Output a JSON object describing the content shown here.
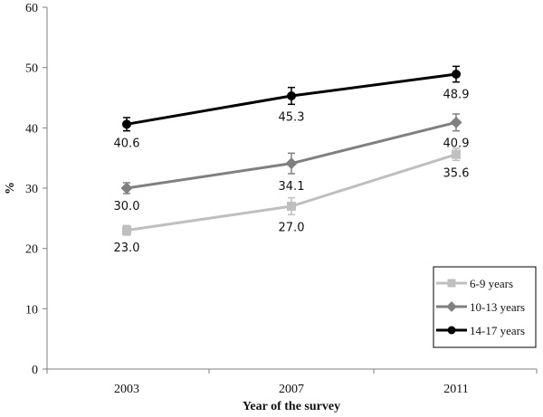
{
  "chart_data": {
    "type": "line",
    "title": "",
    "xlabel": "Year of the survey",
    "ylabel": "%",
    "categories": [
      "2003",
      "2007",
      "2011"
    ],
    "ylim": [
      0,
      60
    ],
    "yticks": [
      "0",
      "10",
      "20",
      "30",
      "40",
      "50",
      "60"
    ],
    "grid": false,
    "legend_position": "bottom-right",
    "series": [
      {
        "name": "6-9 years",
        "marker": "square",
        "color": "#bfbfbf",
        "values": [
          23.0,
          27.0,
          35.6
        ],
        "labels": [
          "23.0",
          "27.0",
          "35.6"
        ],
        "error": [
          0.8,
          1.4,
          1.0
        ]
      },
      {
        "name": "10-13 years",
        "marker": "diamond",
        "color": "#808080",
        "values": [
          30.0,
          34.1,
          40.9
        ],
        "labels": [
          "30.0",
          "34.1",
          "40.9"
        ],
        "error": [
          0.9,
          1.7,
          1.4
        ]
      },
      {
        "name": "14-17 years",
        "marker": "circle",
        "color": "#000000",
        "values": [
          40.6,
          45.3,
          48.9
        ],
        "labels": [
          "40.6",
          "45.3",
          "48.9"
        ],
        "error": [
          1.1,
          1.4,
          1.3
        ]
      }
    ]
  }
}
